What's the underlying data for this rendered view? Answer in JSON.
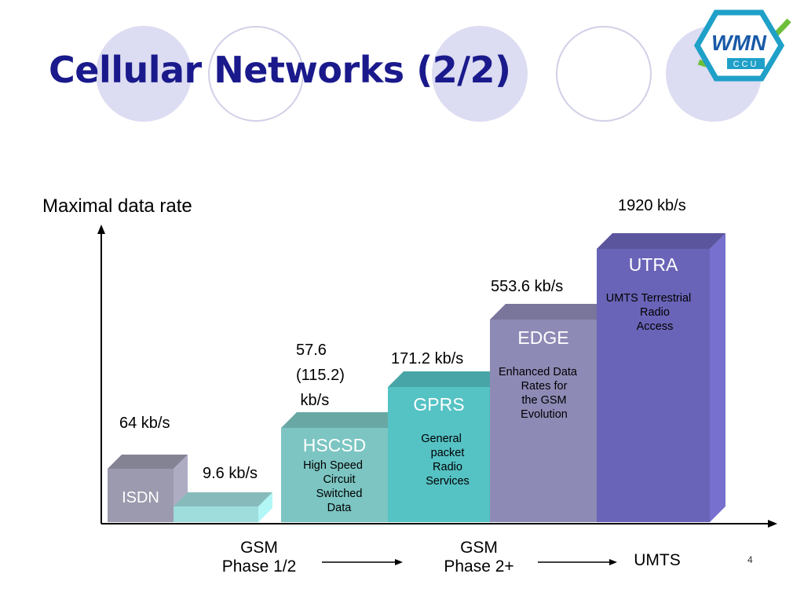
{
  "slide": {
    "title": "Cellular Networks (2/2)",
    "page_number": "4"
  },
  "logo": {
    "text": "WMN",
    "subtext": "CCU"
  },
  "chart_data": {
    "type": "bar",
    "ylabel": "Maximal data rate",
    "bars": [
      {
        "name": "ISDN",
        "description": "",
        "rate_label": "64 kb/s",
        "value": 64,
        "color": "#9b9aae"
      },
      {
        "name": "",
        "description": "",
        "rate_label": "9.6 kb/s",
        "value": 9.6,
        "color": "#9fdcdc"
      },
      {
        "name": "HSCSD",
        "description": "High Speed\nCircuit\nSwitched\nData",
        "rate_label": "57.6\n(115.2)\n kb/s",
        "value": 57.6,
        "color": "#7cc5c2"
      },
      {
        "name": "GPRS",
        "description": "General\npacket\nRadio\nServices",
        "rate_label": "171.2 kb/s",
        "value": 171.2,
        "color": "#55c2c4"
      },
      {
        "name": "EDGE",
        "description": "Enhanced Data\nRates for\nthe GSM\nEvolution",
        "rate_label": "553.6 kb/s",
        "value": 553.6,
        "color": "#8e8ab6"
      },
      {
        "name": "UTRA",
        "description": "UMTS Terrestrial\nRadio\nAccess",
        "rate_label": "1920 kb/s",
        "value": 1920,
        "color": "#6a64b8"
      }
    ],
    "x_phases": [
      "GSM\nPhase 1/2",
      "GSM\nPhase 2+",
      "UMTS"
    ]
  }
}
